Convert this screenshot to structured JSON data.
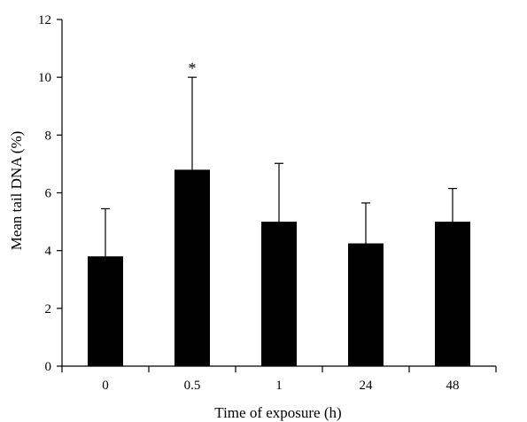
{
  "chart_data": {
    "type": "bar",
    "title": "",
    "xlabel": "Time of exposure (h)",
    "ylabel": "Mean tail DNA (%)",
    "categories": [
      "0",
      "0.5",
      "1",
      "24",
      "48"
    ],
    "values": [
      3.8,
      6.8,
      5.0,
      4.25,
      5.0
    ],
    "error_upper": [
      5.45,
      10.0,
      7.02,
      5.65,
      6.15
    ],
    "annotations": [
      "",
      "*",
      "",
      "",
      ""
    ],
    "ylim": [
      0,
      12
    ],
    "yticks": [
      0,
      2,
      4,
      6,
      8,
      10,
      12
    ],
    "bar_color": "#000000",
    "grid": false,
    "legend": "none"
  }
}
